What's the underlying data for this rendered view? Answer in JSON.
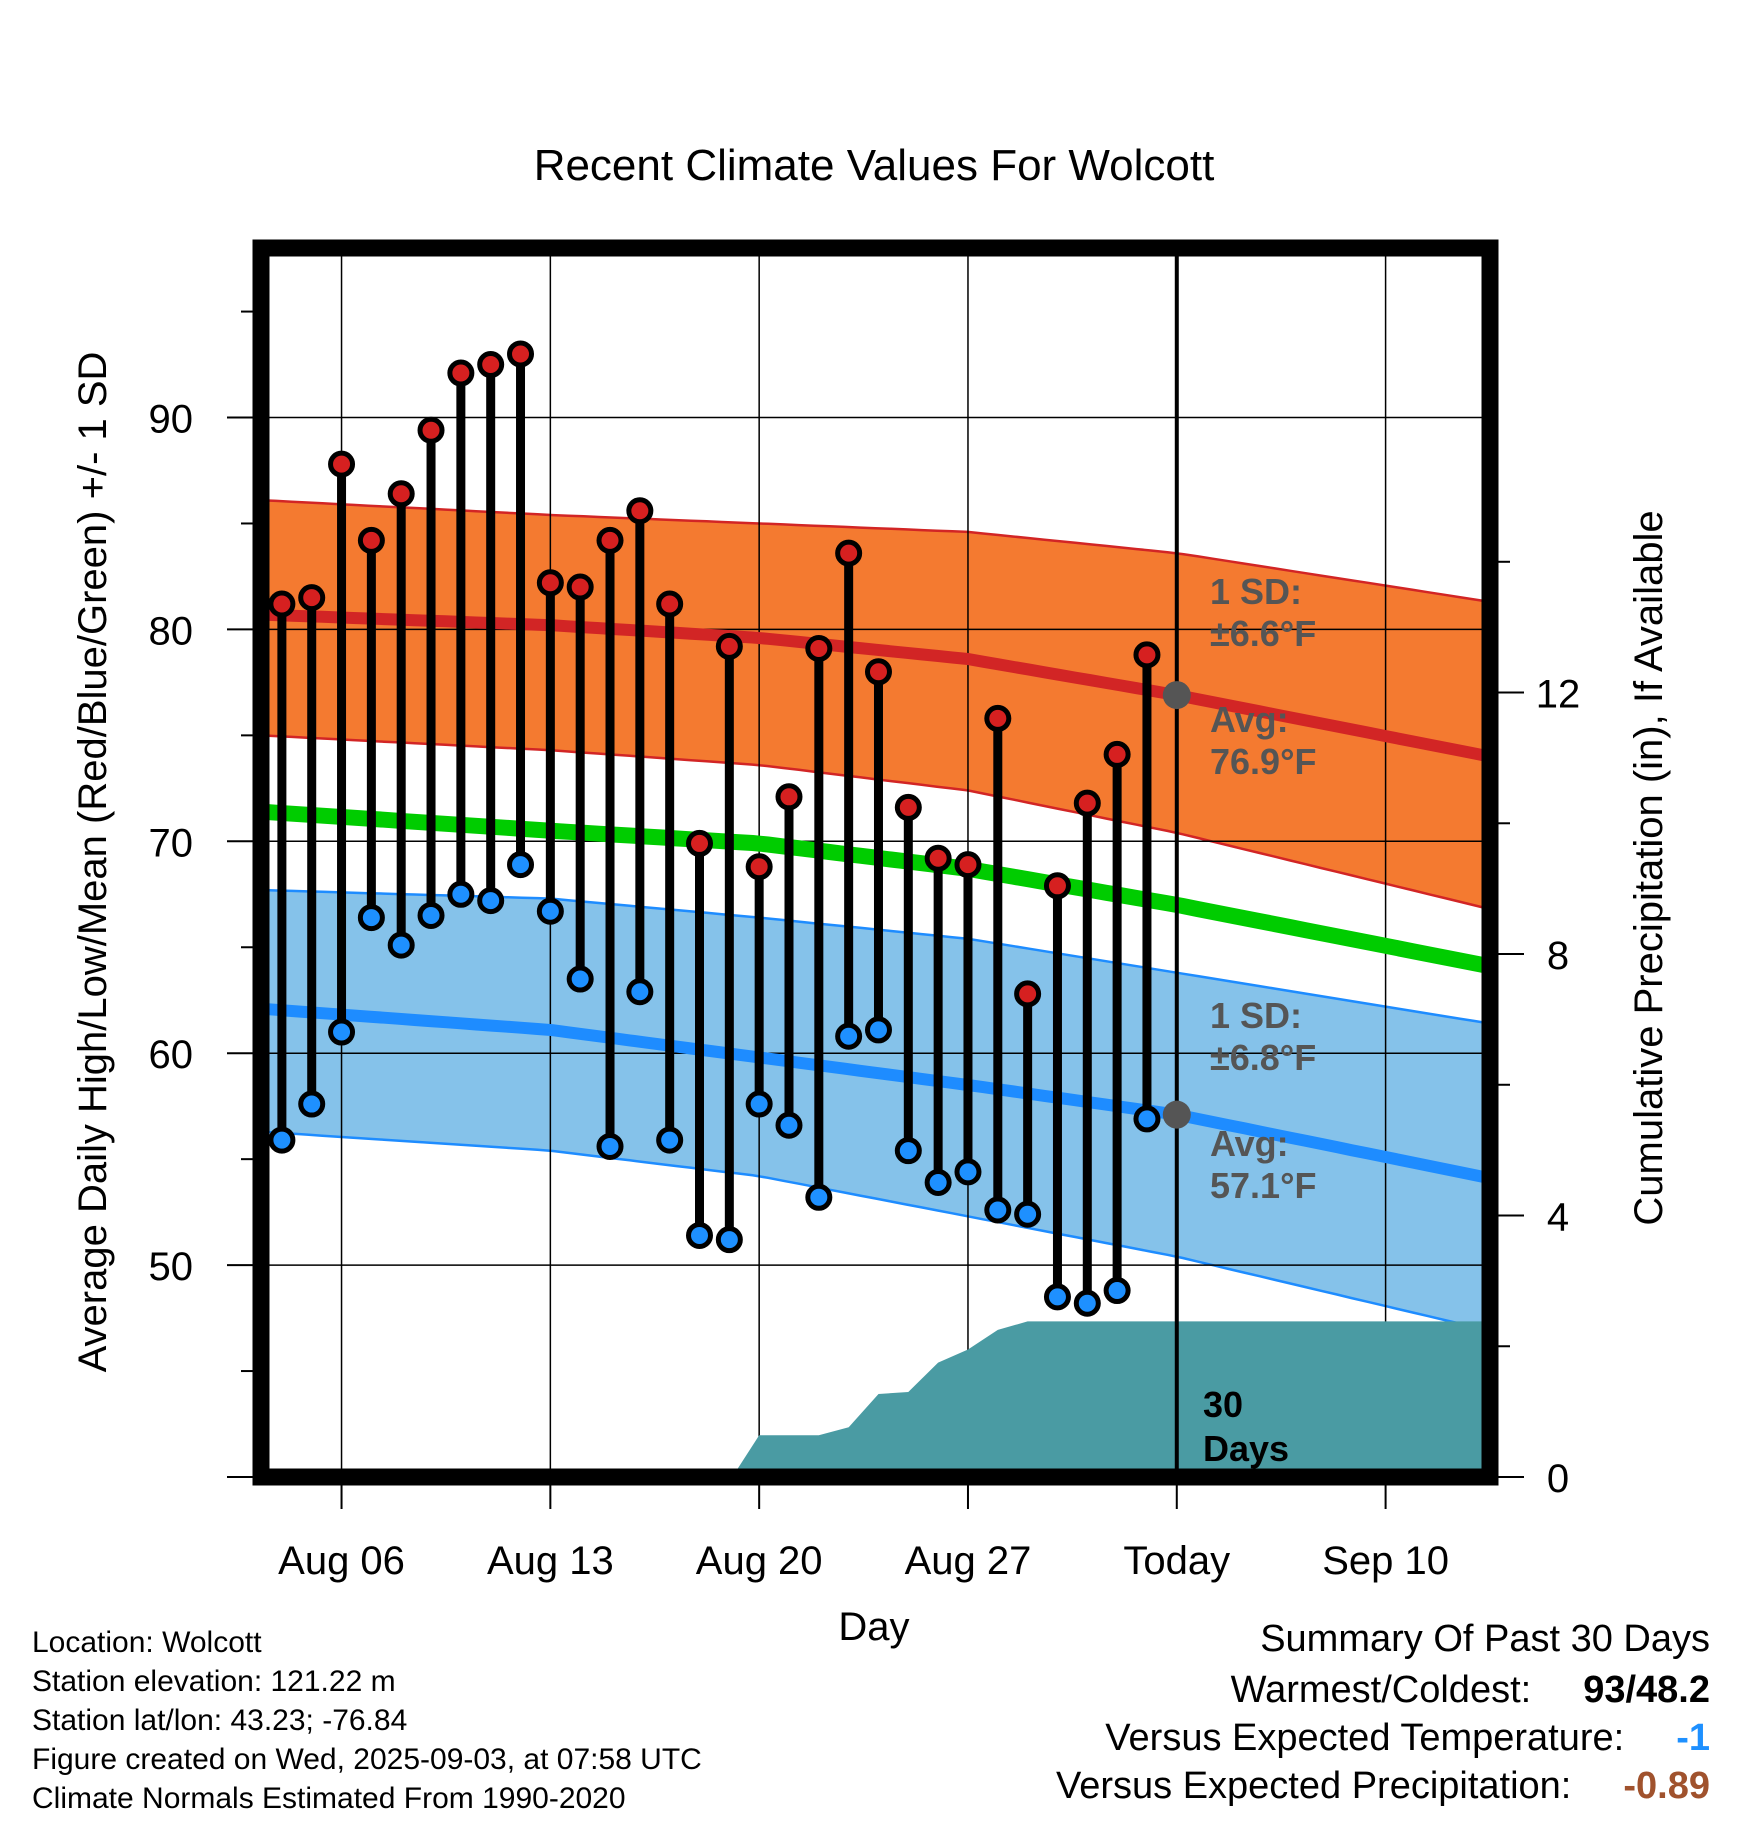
{
  "chart_data": {
    "type": "line",
    "title": "Recent Climate Values For Wolcott",
    "xlabel": "Day",
    "ylabel": "Average Daily High/Low/Mean (Red/Blue/Green) +/- 1 SD",
    "y2label": "Cumulative Precipitation (in), If Available",
    "ylim": [
      40,
      98
    ],
    "y2lim": [
      0,
      18.8
    ],
    "xlim": [
      -2.7,
      38.5
    ],
    "grid": true,
    "x_ticks": [
      {
        "x": 0,
        "label": "Aug 06"
      },
      {
        "x": 7,
        "label": "Aug 13"
      },
      {
        "x": 14,
        "label": "Aug 20"
      },
      {
        "x": 21,
        "label": "Aug 27"
      },
      {
        "x": 28,
        "label": "Today"
      },
      {
        "x": 35,
        "label": "Sep 10"
      }
    ],
    "y_ticks": [
      50,
      60,
      70,
      80,
      90
    ],
    "y2_ticks": [
      0,
      4,
      8,
      12
    ],
    "today_x": 28,
    "normals": {
      "x": [
        -2.7,
        7,
        14,
        21,
        28,
        38.5
      ],
      "high_mean": [
        80.7,
        80.2,
        79.6,
        78.6,
        76.9,
        74.0
      ],
      "high_upper": [
        86.1,
        85.4,
        85.0,
        84.6,
        83.6,
        81.3
      ],
      "high_lower": [
        75.0,
        74.3,
        73.6,
        72.4,
        70.4,
        66.8
      ],
      "mean": [
        71.4,
        70.5,
        69.9,
        68.7,
        67.0,
        64.1
      ],
      "low_mean": [
        62.1,
        61.1,
        59.8,
        58.5,
        57.1,
        54.1
      ],
      "low_upper": [
        67.7,
        67.3,
        66.4,
        65.4,
        63.8,
        61.4
      ],
      "low_lower": [
        56.3,
        55.4,
        54.2,
        52.3,
        50.4,
        46.9
      ]
    },
    "series": [
      {
        "name": "Daily High",
        "color": "#d62020",
        "x": [
          -2,
          -1,
          0,
          1,
          2,
          3,
          4,
          5,
          6,
          7,
          8,
          9,
          10,
          11,
          12,
          13,
          14,
          15,
          16,
          17,
          18,
          19,
          20,
          21,
          22,
          23,
          24,
          25,
          26,
          27
        ],
        "values": [
          81.2,
          81.5,
          87.8,
          84.2,
          86.4,
          89.4,
          92.1,
          92.5,
          93.0,
          82.2,
          82.0,
          84.2,
          85.6,
          81.2,
          69.9,
          79.2,
          68.8,
          72.1,
          79.1,
          83.6,
          78.0,
          71.6,
          69.2,
          68.9,
          75.8,
          62.8,
          67.9,
          71.8,
          74.1,
          78.8
        ]
      },
      {
        "name": "Daily Low",
        "color": "#1e90ff",
        "x": [
          -2,
          -1,
          0,
          1,
          2,
          3,
          4,
          5,
          6,
          7,
          8,
          9,
          10,
          11,
          12,
          13,
          14,
          15,
          16,
          17,
          18,
          19,
          20,
          21,
          22,
          23,
          24,
          25,
          26,
          27
        ],
        "values": [
          55.9,
          57.6,
          61.0,
          66.4,
          65.1,
          66.5,
          67.5,
          67.2,
          68.9,
          66.7,
          63.5,
          55.6,
          62.9,
          55.9,
          51.4,
          51.2,
          57.6,
          56.6,
          53.2,
          60.8,
          61.1,
          55.4,
          53.9,
          54.4,
          52.6,
          52.4,
          48.5,
          48.2,
          48.8,
          56.9
        ]
      },
      {
        "name": "Cumulative Precipitation",
        "color": "#4a9ba3",
        "x": [
          13.1,
          14,
          15,
          16,
          17,
          18,
          19,
          20,
          21,
          22,
          23,
          24,
          25,
          26,
          27,
          28,
          38.5
        ],
        "values": [
          0,
          0.64,
          0.64,
          0.64,
          0.76,
          1.27,
          1.3,
          1.75,
          1.95,
          2.25,
          2.38,
          2.38,
          2.38,
          2.38,
          2.38,
          2.38,
          2.38
        ]
      }
    ],
    "annotations": {
      "high_sd": "1 SD:",
      "high_sd_value": "±6.6°F",
      "high_avg": "Avg:",
      "high_avg_value": "76.9°F",
      "low_sd": "1 SD:",
      "low_sd_value": "±6.8°F",
      "low_avg": "Avg:",
      "low_avg_value": "57.1°F",
      "days_count": "30",
      "days_label": "Days"
    },
    "colors": {
      "high_band": "#f47a30",
      "high_line": "#d22525",
      "mean_line": "#00cc00",
      "low_band": "#85c2ea",
      "low_line": "#1e8cff",
      "precip": "#4a9ba3"
    }
  },
  "footer": {
    "location": "Location: Wolcott",
    "elevation": "Station elevation: 121.22 m",
    "latlon": "Station lat/lon: 43.23; -76.84",
    "created": "Figure created on Wed, 2025-09-03, at 07:58 UTC",
    "normals": "Climate Normals Estimated From 1990-2020"
  },
  "summary": {
    "title": "Summary Of Past 30 Days",
    "warmest_label": "Warmest/Coldest:",
    "warmest_value": "93/48.2",
    "temp_label": "Versus Expected Temperature:",
    "temp_value": "-1",
    "temp_color": "#1e90ff",
    "precip_label": "Versus Expected Precipitation:",
    "precip_value": "-0.89",
    "precip_color": "#a0522d"
  }
}
